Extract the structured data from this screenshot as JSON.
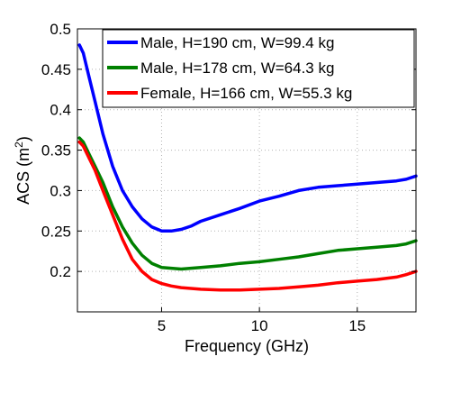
{
  "chart_data": {
    "type": "line",
    "xlabel": "Frequency (GHz)",
    "ylabel_main": "ACS (m",
    "ylabel_sup": "2",
    "ylabel_close": ")",
    "xlim": [
      0.7,
      18
    ],
    "ylim": [
      0.15,
      0.5
    ],
    "xticks": [
      5,
      10,
      15
    ],
    "xtick_labels": [
      "5",
      "10",
      "15"
    ],
    "yticks": [
      0.2,
      0.25,
      0.3,
      0.35,
      0.4,
      0.45,
      0.5
    ],
    "ytick_labels": [
      "0.2",
      "0.25",
      "0.3",
      "0.35",
      "0.4",
      "0.45",
      "0.5"
    ],
    "grid": true,
    "legend_position": "top-right",
    "series": [
      {
        "name": "Male, H=190 cm, W=99.4 kg",
        "color": "#0000ff",
        "x": [
          0.8,
          1.0,
          1.3,
          1.6,
          2.0,
          2.5,
          3.0,
          3.5,
          4.0,
          4.5,
          5.0,
          5.5,
          6.0,
          6.5,
          7.0,
          8.0,
          9.0,
          10.0,
          11.0,
          12.0,
          13.0,
          14.0,
          15.0,
          16.0,
          17.0,
          17.5,
          18.0
        ],
        "y": [
          0.48,
          0.47,
          0.44,
          0.41,
          0.37,
          0.33,
          0.3,
          0.28,
          0.265,
          0.255,
          0.25,
          0.25,
          0.252,
          0.256,
          0.262,
          0.27,
          0.278,
          0.287,
          0.293,
          0.3,
          0.304,
          0.306,
          0.308,
          0.31,
          0.312,
          0.314,
          0.318
        ]
      },
      {
        "name": "Male, H=178 cm, W=64.3 kg",
        "color": "#008000",
        "x": [
          0.8,
          1.0,
          1.3,
          1.6,
          2.0,
          2.5,
          3.0,
          3.5,
          4.0,
          4.5,
          5.0,
          5.5,
          6.0,
          6.5,
          7.0,
          8.0,
          9.0,
          10.0,
          11.0,
          12.0,
          13.0,
          14.0,
          15.0,
          16.0,
          17.0,
          17.5,
          18.0
        ],
        "y": [
          0.365,
          0.36,
          0.345,
          0.33,
          0.31,
          0.28,
          0.255,
          0.235,
          0.22,
          0.21,
          0.205,
          0.204,
          0.203,
          0.204,
          0.205,
          0.207,
          0.21,
          0.212,
          0.215,
          0.218,
          0.222,
          0.226,
          0.228,
          0.23,
          0.232,
          0.234,
          0.238
        ]
      },
      {
        "name": "Female, H=166 cm, W=55.3 kg",
        "color": "#ff0000",
        "x": [
          0.8,
          1.0,
          1.3,
          1.6,
          2.0,
          2.5,
          3.0,
          3.5,
          4.0,
          4.5,
          5.0,
          5.5,
          6.0,
          6.5,
          7.0,
          8.0,
          9.0,
          10.0,
          11.0,
          12.0,
          13.0,
          14.0,
          15.0,
          16.0,
          17.0,
          17.5,
          18.0
        ],
        "y": [
          0.36,
          0.355,
          0.34,
          0.325,
          0.3,
          0.27,
          0.24,
          0.215,
          0.2,
          0.19,
          0.185,
          0.182,
          0.18,
          0.179,
          0.178,
          0.177,
          0.177,
          0.178,
          0.179,
          0.181,
          0.183,
          0.186,
          0.188,
          0.19,
          0.193,
          0.196,
          0.2
        ]
      }
    ]
  }
}
